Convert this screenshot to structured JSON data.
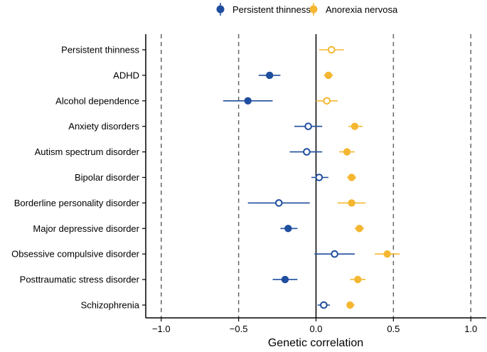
{
  "chart_data": {
    "type": "scatter",
    "xlabel": "Genetic correlation",
    "xlim": [
      -1.1,
      1.1
    ],
    "xticks": [
      -1.0,
      -0.5,
      0.0,
      0.5,
      1.0
    ],
    "xtick_labels": [
      "−1.0",
      "−0.5",
      "0.0",
      "0.5",
      "1.0"
    ],
    "reference_lines": [
      -1.0,
      -0.5,
      0.5,
      1.0
    ],
    "categories": [
      "Persistent thinness",
      "ADHD",
      "Alcohol dependence",
      "Anxiety disorders",
      "Autism spectrum disorder",
      "Bipolar disorder",
      "Borderline personality disorder",
      "Major depressive disorder",
      "Obsessive compulsive disorder",
      "Posttraumatic stress disorder",
      "Schizophrenia"
    ],
    "legend_position": "top",
    "series": [
      {
        "name": "Persistent thinness",
        "color": "#1f4e9e",
        "points": [
          null,
          {
            "value": -0.3,
            "lower": -0.37,
            "upper": -0.23,
            "significant": true
          },
          {
            "value": -0.44,
            "lower": -0.6,
            "upper": -0.28,
            "significant": true
          },
          {
            "value": -0.05,
            "lower": -0.14,
            "upper": 0.04,
            "significant": false
          },
          {
            "value": -0.06,
            "lower": -0.17,
            "upper": 0.04,
            "significant": false
          },
          {
            "value": 0.02,
            "lower": -0.03,
            "upper": 0.08,
            "significant": false
          },
          {
            "value": -0.24,
            "lower": -0.44,
            "upper": -0.04,
            "significant": false
          },
          {
            "value": -0.18,
            "lower": -0.23,
            "upper": -0.12,
            "significant": true
          },
          {
            "value": 0.12,
            "lower": -0.01,
            "upper": 0.25,
            "significant": false
          },
          {
            "value": -0.2,
            "lower": -0.28,
            "upper": -0.12,
            "significant": true
          },
          {
            "value": 0.05,
            "lower": 0.01,
            "upper": 0.09,
            "significant": false
          }
        ]
      },
      {
        "name": "Anorexia nervosa",
        "color": "#f5b731",
        "points": [
          {
            "value": 0.1,
            "lower": 0.02,
            "upper": 0.18,
            "significant": false
          },
          {
            "value": 0.08,
            "lower": 0.05,
            "upper": 0.11,
            "significant": true
          },
          {
            "value": 0.07,
            "lower": 0.0,
            "upper": 0.14,
            "significant": false
          },
          {
            "value": 0.25,
            "lower": 0.21,
            "upper": 0.3,
            "significant": true
          },
          {
            "value": 0.2,
            "lower": 0.15,
            "upper": 0.25,
            "significant": true
          },
          {
            "value": 0.23,
            "lower": 0.2,
            "upper": 0.26,
            "significant": true
          },
          {
            "value": 0.23,
            "lower": 0.14,
            "upper": 0.32,
            "significant": true
          },
          {
            "value": 0.28,
            "lower": 0.25,
            "upper": 0.31,
            "significant": true
          },
          {
            "value": 0.46,
            "lower": 0.38,
            "upper": 0.54,
            "significant": true
          },
          {
            "value": 0.27,
            "lower": 0.22,
            "upper": 0.32,
            "significant": true
          },
          {
            "value": 0.22,
            "lower": 0.2,
            "upper": 0.25,
            "significant": true
          }
        ]
      }
    ]
  }
}
